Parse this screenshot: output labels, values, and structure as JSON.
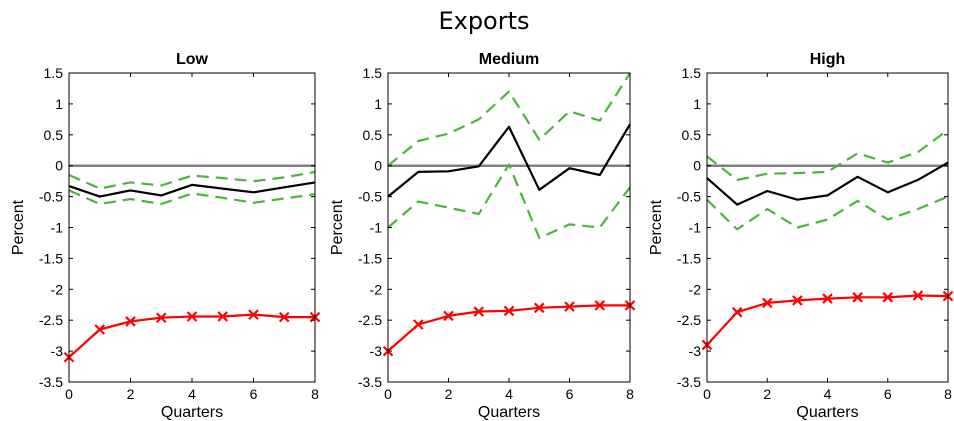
{
  "figure_title": "Exports",
  "chart_data": [
    {
      "type": "line",
      "title": "Low",
      "xlabel": "Quarters",
      "ylabel": "Percent",
      "xlim": [
        0,
        8
      ],
      "ylim": [
        -3.5,
        1.5
      ],
      "xticks": [
        0,
        2,
        4,
        6,
        8
      ],
      "yticks": [
        -3.5,
        -3,
        -2.5,
        -2,
        -1.5,
        -1,
        -0.5,
        0,
        0.5,
        1,
        1.5
      ],
      "zero_line": 0,
      "x": [
        0,
        1,
        2,
        3,
        4,
        5,
        6,
        7,
        8
      ],
      "series": [
        {
          "values": [
            -0.33,
            -0.5,
            -0.4,
            -0.48,
            -0.31,
            -0.37,
            -0.43,
            -0.35,
            -0.27
          ],
          "color": "#000000",
          "style": "solid"
        },
        {
          "values": [
            -0.15,
            -0.37,
            -0.27,
            -0.32,
            -0.16,
            -0.2,
            -0.25,
            -0.19,
            -0.1
          ],
          "color": "#4db33d",
          "style": "dashed"
        },
        {
          "values": [
            -0.4,
            -0.62,
            -0.54,
            -0.62,
            -0.45,
            -0.52,
            -0.6,
            -0.53,
            -0.46
          ],
          "color": "#4db33d",
          "style": "dashed"
        },
        {
          "values": [
            -3.1,
            -2.65,
            -2.52,
            -2.46,
            -2.44,
            -2.44,
            -2.41,
            -2.45,
            -2.45
          ],
          "color": "#ff0000",
          "style": "solid",
          "marker": "x"
        }
      ]
    },
    {
      "type": "line",
      "title": "Medium",
      "xlabel": "Quarters",
      "ylabel": "Percent",
      "xlim": [
        0,
        8
      ],
      "ylim": [
        -3.5,
        1.5
      ],
      "xticks": [
        0,
        2,
        4,
        6,
        8
      ],
      "yticks": [
        -3.5,
        -3,
        -2.5,
        -2,
        -1.5,
        -1,
        -0.5,
        0,
        0.5,
        1,
        1.5
      ],
      "zero_line": 0,
      "x": [
        0,
        1,
        2,
        3,
        4,
        5,
        6,
        7,
        8
      ],
      "series": [
        {
          "values": [
            -0.5,
            -0.1,
            -0.09,
            -0.01,
            0.63,
            -0.39,
            -0.04,
            -0.15,
            0.67
          ],
          "color": "#000000",
          "style": "solid"
        },
        {
          "values": [
            0.0,
            0.4,
            0.52,
            0.75,
            1.2,
            0.42,
            0.88,
            0.73,
            1.5
          ],
          "color": "#4db33d",
          "style": "dashed"
        },
        {
          "values": [
            -1.0,
            -0.58,
            -0.68,
            -0.78,
            0.02,
            -1.17,
            -0.95,
            -1.0,
            -0.35
          ],
          "color": "#4db33d",
          "style": "dashed"
        },
        {
          "values": [
            -3.0,
            -2.57,
            -2.43,
            -2.36,
            -2.35,
            -2.3,
            -2.28,
            -2.26,
            -2.26
          ],
          "color": "#ff0000",
          "style": "solid",
          "marker": "x"
        }
      ]
    },
    {
      "type": "line",
      "title": "High",
      "xlabel": "Quarters",
      "ylabel": "Percent",
      "xlim": [
        0,
        8
      ],
      "ylim": [
        -3.5,
        1.5
      ],
      "xticks": [
        0,
        2,
        4,
        6,
        8
      ],
      "yticks": [
        -3.5,
        -3,
        -2.5,
        -2,
        -1.5,
        -1,
        -0.5,
        0,
        0.5,
        1,
        1.5
      ],
      "zero_line": 0,
      "x": [
        0,
        1,
        2,
        3,
        4,
        5,
        6,
        7,
        8
      ],
      "series": [
        {
          "values": [
            -0.2,
            -0.63,
            -0.41,
            -0.55,
            -0.48,
            -0.18,
            -0.43,
            -0.23,
            0.05
          ],
          "color": "#000000",
          "style": "solid"
        },
        {
          "values": [
            0.15,
            -0.23,
            -0.13,
            -0.12,
            -0.1,
            0.2,
            0.05,
            0.22,
            0.58
          ],
          "color": "#4db33d",
          "style": "dashed"
        },
        {
          "values": [
            -0.55,
            -1.03,
            -0.7,
            -1.0,
            -0.87,
            -0.57,
            -0.87,
            -0.7,
            -0.5
          ],
          "color": "#4db33d",
          "style": "dashed"
        },
        {
          "values": [
            -2.9,
            -2.37,
            -2.22,
            -2.18,
            -2.15,
            -2.13,
            -2.13,
            -2.1,
            -2.11
          ],
          "color": "#ff0000",
          "style": "solid",
          "marker": "x"
        }
      ]
    }
  ]
}
